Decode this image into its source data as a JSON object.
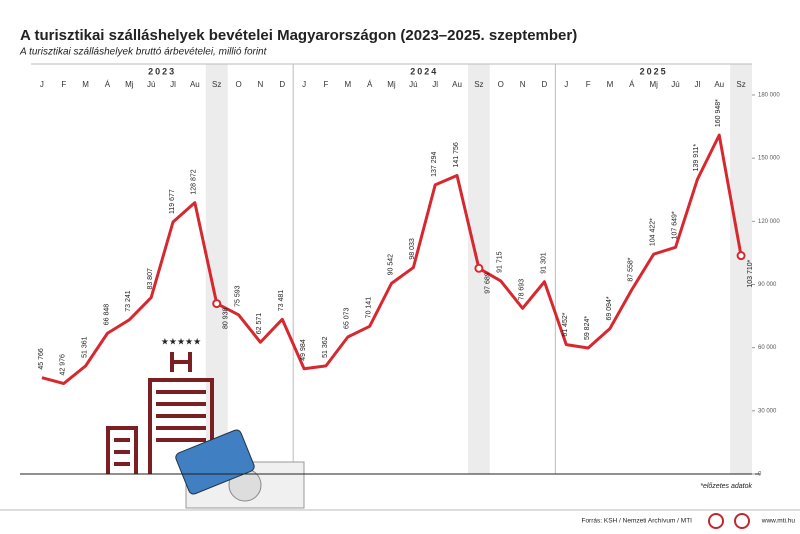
{
  "chart_data": {
    "type": "line",
    "title": "A turisztikai szálláshelyek bevételei Magyarországon (2023–2025. szeptember)",
    "subtitle": "A turisztikai szálláshelyek bruttó árbevételei, millió forint",
    "years": [
      {
        "label": "2023",
        "start": 0,
        "end": 11
      },
      {
        "label": "2024",
        "start": 12,
        "end": 23
      },
      {
        "label": "2025",
        "start": 24,
        "end": 32
      }
    ],
    "categories": [
      "J",
      "F",
      "M",
      "Á",
      "Mj",
      "Jú",
      "Jl",
      "Au",
      "Sz",
      "O",
      "N",
      "D",
      "J",
      "F",
      "M",
      "Á",
      "Mj",
      "Jú",
      "Jl",
      "Au",
      "Sz",
      "O",
      "N",
      "D",
      "J",
      "F",
      "M",
      "Á",
      "Mj",
      "Jú",
      "Jl",
      "Au",
      "Sz"
    ],
    "highlighted": [
      8,
      20,
      32
    ],
    "series": [
      {
        "name": "bevétel",
        "color": "#d8282f",
        "values": [
          45766,
          42976,
          51361,
          66848,
          73241,
          83807,
          119677,
          128872,
          80938,
          75593,
          62571,
          73481,
          49984,
          51362,
          65073,
          70141,
          90542,
          98033,
          137294,
          141756,
          97689,
          91715,
          78693,
          91301,
          61452,
          59824,
          69094,
          87558,
          104422,
          107649,
          139911,
          160948,
          103710
        ],
        "value_labels": [
          "45 766",
          "42 976",
          "51 361",
          "66 848",
          "73 241",
          "83 807",
          "119 677",
          "128 872",
          "80 938",
          "75 593",
          "62 571",
          "73 481",
          "49 984",
          "51 362",
          "65 073",
          "70 141",
          "90 542",
          "98 033",
          "137 294",
          "141 756",
          "97 689",
          "91 715",
          "78 693",
          "91 301",
          "61 452*",
          "59 824*",
          "69 094*",
          "87 558*",
          "104 422*",
          "107 649*",
          "139 911*",
          "160 948*",
          "103 710*"
        ]
      }
    ],
    "ylim": [
      0,
      180000
    ],
    "yticks": [
      0,
      {
        "value": 30000,
        "label": "30 000"
      },
      {
        "value": 60000,
        "label": "60 000"
      },
      {
        "value": 90000,
        "label": "90 000"
      },
      {
        "value": 120000,
        "label": "120 000"
      },
      {
        "value": 150000,
        "label": "150 000"
      },
      {
        "value": 180000,
        "label": "180 000"
      }
    ],
    "footnote": "*előzetes adatok",
    "source": "Forrás: KSH / Nemzeti Archívum / MTI",
    "website": "www.mti.hu"
  }
}
